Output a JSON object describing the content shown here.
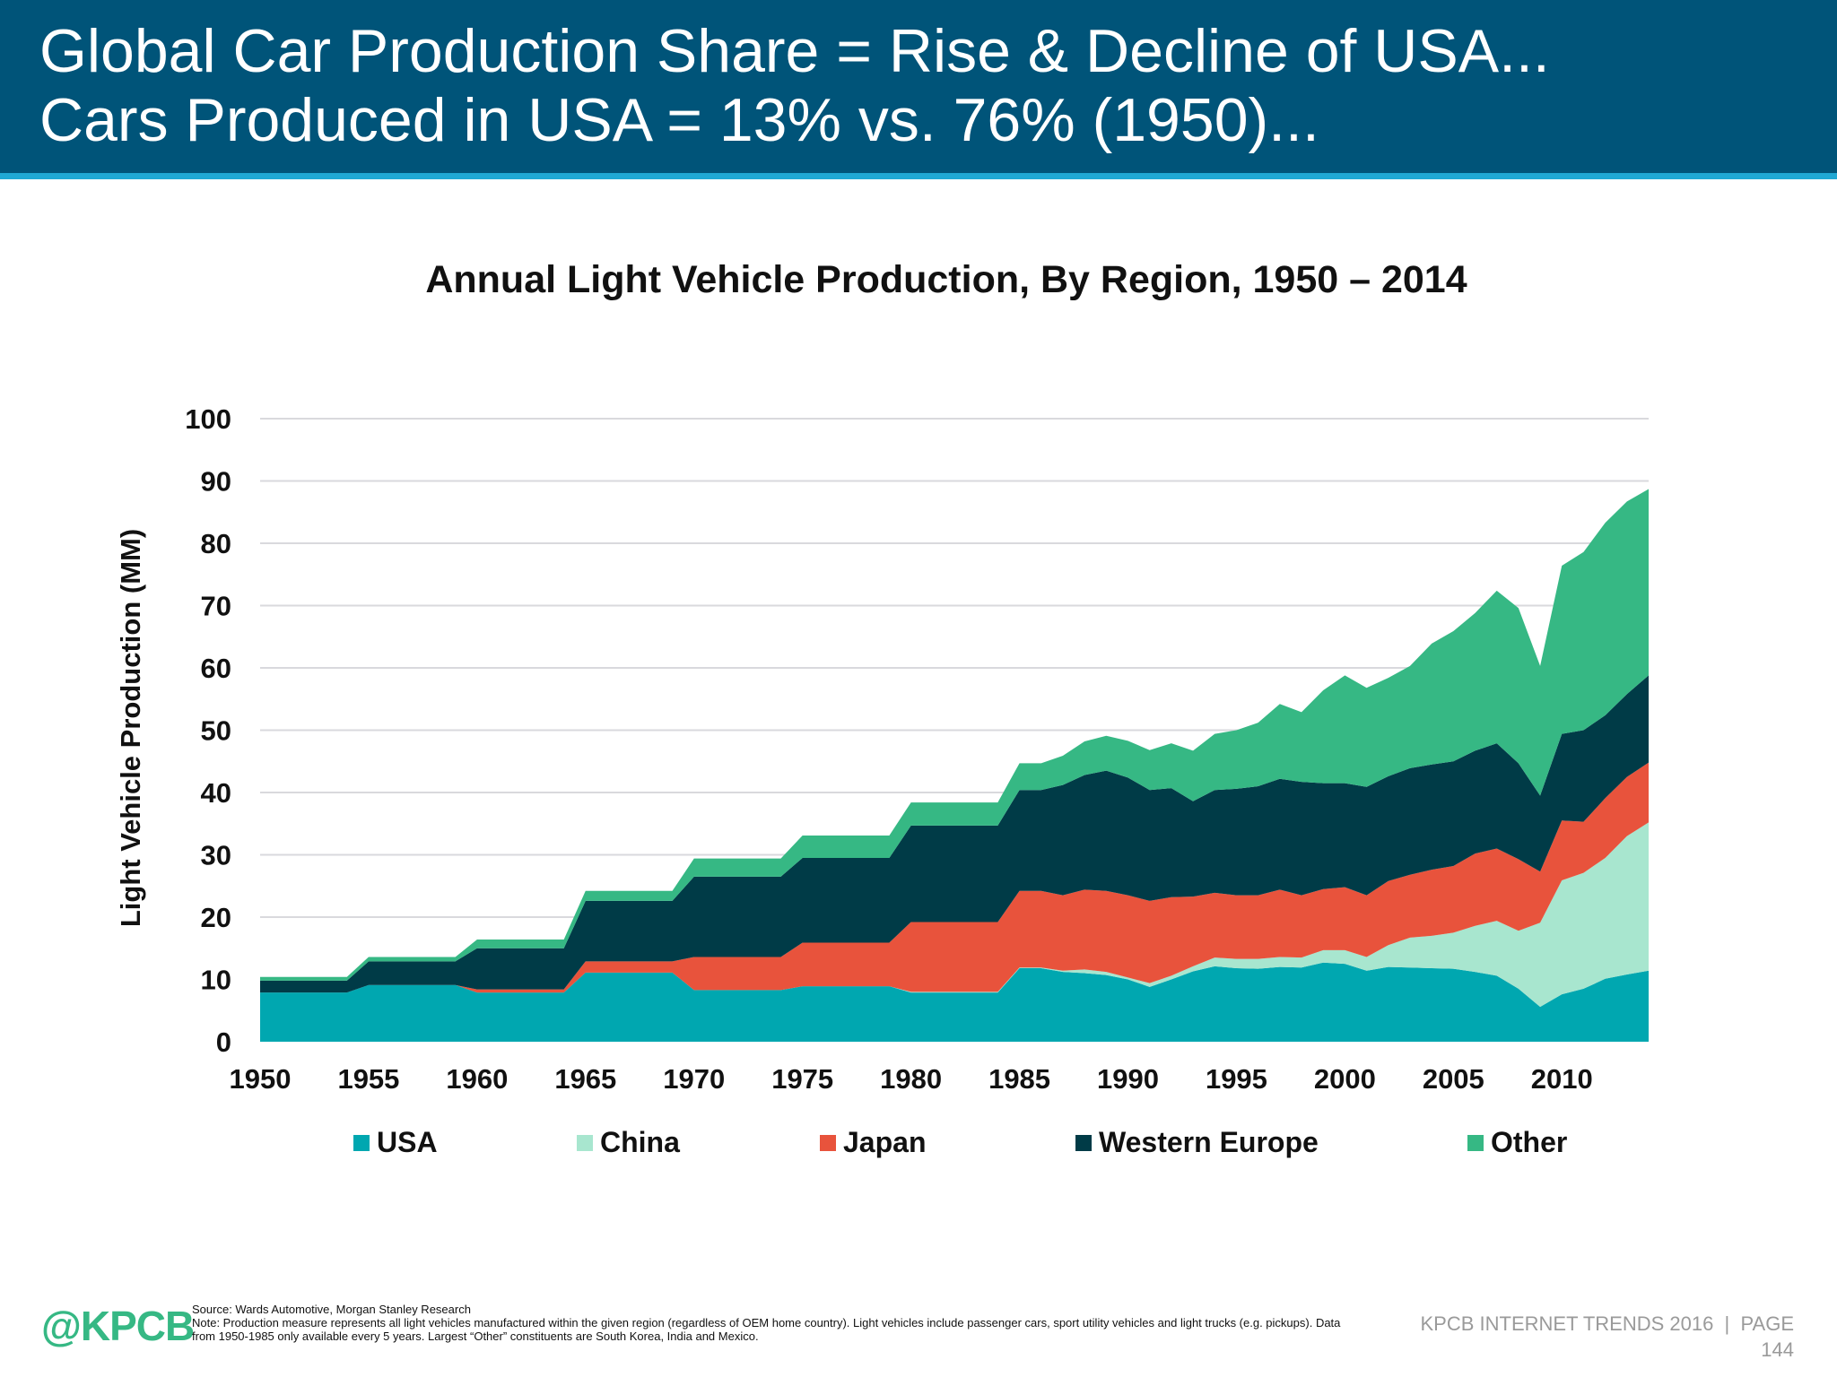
{
  "header": {
    "line1": "Global Car Production Share = Rise & Decline of USA...",
    "line2": "Cars Produced in USA = 13% vs. 76% (1950)..."
  },
  "footer": {
    "logo": "@KPCB",
    "source": "Source: Wards Automotive, Morgan Stanley Research",
    "note": "Note: Production measure represents all light vehicles manufactured within the given region (regardless of OEM home country). Light vehicles include passenger cars, sport utility vehicles and light trucks (e.g. pickups). Data from 1950-1985 only available every 5 years. Largest “Other” constituents are South Korea, India and Mexico.",
    "brand": "KPCB INTERNET TRENDS 2016  |  PAGE",
    "page": "144"
  },
  "chart_data": {
    "type": "area",
    "stacked": true,
    "title": "Annual Light Vehicle Production, By Region, 1950 – 2014",
    "xlabel": "",
    "ylabel": "Light Vehicle Production (MM)",
    "xlim": [
      1950,
      2014
    ],
    "ylim": [
      0,
      100
    ],
    "xticks": [
      1950,
      1955,
      1960,
      1965,
      1970,
      1975,
      1980,
      1985,
      1990,
      1995,
      2000,
      2005,
      2010
    ],
    "yticks": [
      0,
      10,
      20,
      30,
      40,
      50,
      60,
      70,
      80,
      90,
      100
    ],
    "grid": true,
    "legend": "bottom",
    "x": [
      1950,
      1951,
      1952,
      1953,
      1954,
      1955,
      1956,
      1957,
      1958,
      1959,
      1960,
      1961,
      1962,
      1963,
      1964,
      1965,
      1966,
      1967,
      1968,
      1969,
      1970,
      1971,
      1972,
      1973,
      1974,
      1975,
      1976,
      1977,
      1978,
      1979,
      1980,
      1981,
      1982,
      1983,
      1984,
      1985,
      1986,
      1987,
      1988,
      1989,
      1990,
      1991,
      1992,
      1993,
      1994,
      1995,
      1996,
      1997,
      1998,
      1999,
      2000,
      2001,
      2002,
      2003,
      2004,
      2005,
      2006,
      2007,
      2008,
      2009,
      2010,
      2011,
      2012,
      2013,
      2014
    ],
    "series": [
      {
        "name": "USA",
        "color": "#00A7B0",
        "values": [
          7.9,
          7.9,
          7.9,
          7.9,
          7.9,
          9.1,
          9.1,
          9.1,
          9.1,
          9.1,
          7.9,
          7.9,
          7.9,
          7.9,
          7.9,
          11.1,
          11.1,
          11.1,
          11.1,
          11.1,
          8.3,
          8.3,
          8.3,
          8.3,
          8.3,
          8.9,
          8.9,
          8.9,
          8.9,
          8.9,
          7.9,
          7.9,
          7.9,
          7.9,
          7.9,
          11.8,
          11.8,
          11.2,
          11.0,
          10.7,
          10.0,
          8.8,
          10.0,
          11.3,
          12.1,
          11.8,
          11.7,
          12.0,
          11.9,
          12.7,
          12.5,
          11.4,
          12.0,
          11.9,
          11.8,
          11.7,
          11.2,
          10.6,
          8.5,
          5.6,
          7.6,
          8.5,
          10.1,
          10.8,
          11.4
        ]
      },
      {
        "name": "China",
        "color": "#A8E6CF",
        "values": [
          0,
          0,
          0,
          0,
          0,
          0,
          0,
          0,
          0,
          0,
          0,
          0,
          0,
          0,
          0,
          0,
          0,
          0,
          0,
          0,
          0,
          0,
          0,
          0,
          0,
          0,
          0,
          0,
          0,
          0,
          0.1,
          0.1,
          0.1,
          0.1,
          0.1,
          0.1,
          0.1,
          0.2,
          0.6,
          0.5,
          0.3,
          0.6,
          0.6,
          0.8,
          1.4,
          1.5,
          1.6,
          1.6,
          1.6,
          2.0,
          2.2,
          2.2,
          3.5,
          4.8,
          5.2,
          5.8,
          7.4,
          8.8,
          9.3,
          13.5,
          18.3,
          18.6,
          19.4,
          22.2,
          23.8
        ]
      },
      {
        "name": "Japan",
        "color": "#E8533C",
        "values": [
          0,
          0,
          0,
          0,
          0,
          0,
          0,
          0,
          0,
          0,
          0.5,
          0.5,
          0.5,
          0.5,
          0.5,
          1.8,
          1.8,
          1.8,
          1.8,
          1.8,
          5.3,
          5.3,
          5.3,
          5.3,
          5.3,
          7.0,
          7.0,
          7.0,
          7.0,
          7.0,
          11.2,
          11.2,
          11.2,
          11.2,
          11.2,
          12.3,
          12.3,
          12.1,
          12.8,
          13.0,
          13.2,
          13.2,
          12.6,
          11.2,
          10.4,
          10.2,
          10.2,
          10.8,
          10.0,
          9.8,
          10.1,
          9.9,
          10.3,
          10.1,
          10.6,
          10.7,
          11.6,
          11.6,
          11.5,
          8.2,
          9.6,
          8.2,
          9.6,
          9.5,
          9.6
        ]
      },
      {
        "name": "Western Europe",
        "color": "#003B47",
        "values": [
          1.9,
          1.9,
          1.9,
          1.9,
          1.9,
          3.8,
          3.8,
          3.8,
          3.8,
          3.8,
          6.6,
          6.6,
          6.6,
          6.6,
          6.6,
          9.7,
          9.7,
          9.7,
          9.7,
          9.7,
          12.9,
          12.9,
          12.9,
          12.9,
          12.9,
          13.6,
          13.6,
          13.6,
          13.6,
          13.6,
          15.5,
          15.5,
          15.5,
          15.5,
          15.5,
          16.2,
          16.2,
          17.7,
          18.4,
          19.3,
          18.9,
          17.8,
          17.5,
          15.3,
          16.5,
          17.1,
          17.5,
          17.8,
          18.2,
          17.0,
          16.7,
          17.4,
          16.8,
          17.1,
          16.9,
          16.8,
          16.5,
          16.9,
          15.4,
          12.2,
          13.9,
          14.7,
          13.3,
          13.3,
          14.0
        ]
      },
      {
        "name": "Other",
        "color": "#36B884",
        "values": [
          0.6,
          0.6,
          0.6,
          0.6,
          0.6,
          0.7,
          0.7,
          0.7,
          0.7,
          0.7,
          1.4,
          1.4,
          1.4,
          1.4,
          1.4,
          1.6,
          1.6,
          1.6,
          1.6,
          1.6,
          2.9,
          2.9,
          2.9,
          2.9,
          2.9,
          3.6,
          3.6,
          3.6,
          3.6,
          3.6,
          3.7,
          3.7,
          3.7,
          3.7,
          3.7,
          4.3,
          4.3,
          4.7,
          5.4,
          5.6,
          5.9,
          6.4,
          7.2,
          8.1,
          9.0,
          9.4,
          10.2,
          12.0,
          11.2,
          14.9,
          17.3,
          15.9,
          15.8,
          16.4,
          19.4,
          20.9,
          22.1,
          24.5,
          24.9,
          20.8,
          27.0,
          28.6,
          30.9,
          30.9,
          29.9
        ]
      }
    ]
  }
}
